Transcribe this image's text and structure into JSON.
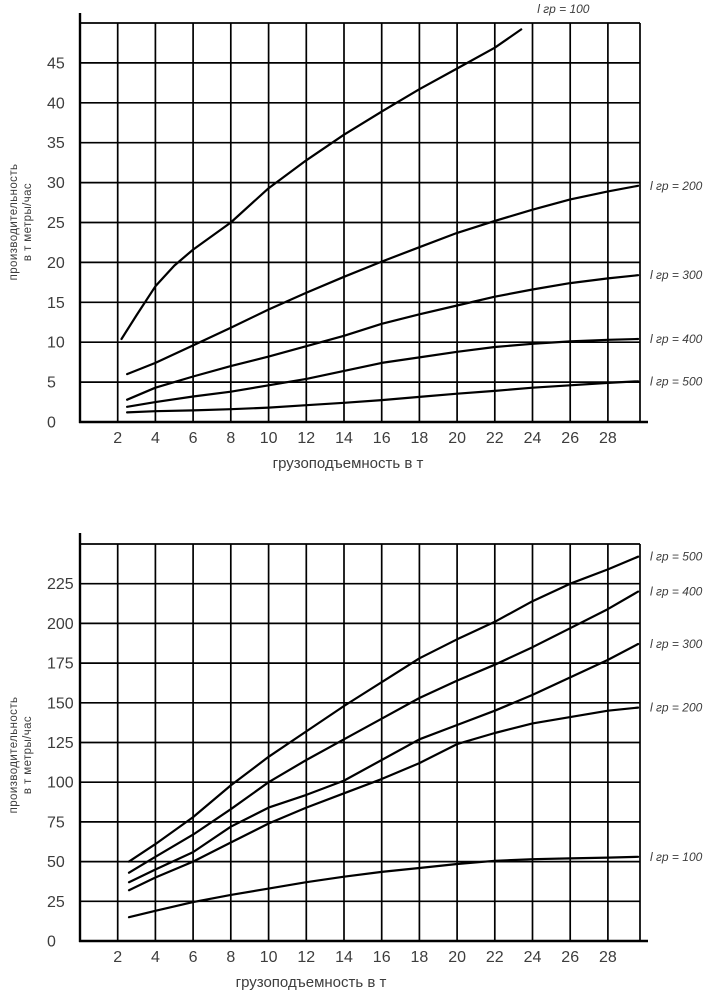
{
  "colors": {
    "background": "#ffffff",
    "line": "#000000",
    "text": "#3d3d3d"
  },
  "chart_data": [
    {
      "type": "line",
      "title": "",
      "xlabel": "грузоподъемность в т",
      "ylabel": "производительность в т метры/час",
      "ylabel_lines": [
        "производительность",
        "в т метры/час"
      ],
      "xlim": [
        0,
        29.7
      ],
      "ylim": [
        0,
        50
      ],
      "x_ticks": [
        2,
        4,
        6,
        8,
        10,
        12,
        14,
        16,
        18,
        20,
        22,
        24,
        26,
        28
      ],
      "y_ticks": [
        0,
        5,
        10,
        15,
        20,
        25,
        30,
        35,
        40,
        45
      ],
      "grid": true,
      "legend_position": "labels-at-curve-ends",
      "series": [
        {
          "name": "l гр = 100",
          "label_placement": "top",
          "points": [
            [
              2.2,
              10.4
            ],
            [
              3,
              13.4
            ],
            [
              4,
              17
            ],
            [
              5,
              19.6
            ],
            [
              6,
              21.6
            ],
            [
              8,
              25
            ],
            [
              10,
              29.3
            ],
            [
              12,
              32.8
            ],
            [
              14,
              36
            ],
            [
              16,
              38.9
            ],
            [
              18,
              41.7
            ],
            [
              20,
              44.3
            ],
            [
              22,
              46.9
            ],
            [
              23.4,
              49.2
            ]
          ]
        },
        {
          "name": "l гр = 200",
          "label_placement": "right",
          "points": [
            [
              2.5,
              6
            ],
            [
              4,
              7.4
            ],
            [
              6,
              9.6
            ],
            [
              8,
              11.8
            ],
            [
              10,
              14.1
            ],
            [
              12,
              16.2
            ],
            [
              14,
              18.2
            ],
            [
              16,
              20.1
            ],
            [
              18,
              21.9
            ],
            [
              20,
              23.7
            ],
            [
              22,
              25.2
            ],
            [
              24,
              26.6
            ],
            [
              26,
              27.9
            ],
            [
              28,
              28.9
            ],
            [
              29.6,
              29.6
            ]
          ]
        },
        {
          "name": "l гр = 300",
          "label_placement": "right",
          "points": [
            [
              2.5,
              2.8
            ],
            [
              4,
              4.3
            ],
            [
              6,
              5.7
            ],
            [
              8,
              7
            ],
            [
              10,
              8.2
            ],
            [
              12,
              9.5
            ],
            [
              14,
              10.8
            ],
            [
              16,
              12.3
            ],
            [
              18,
              13.5
            ],
            [
              20,
              14.6
            ],
            [
              22,
              15.7
            ],
            [
              24,
              16.6
            ],
            [
              26,
              17.4
            ],
            [
              28,
              18
            ],
            [
              29.6,
              18.4
            ]
          ]
        },
        {
          "name": "l гр = 400",
          "label_placement": "right",
          "points": [
            [
              2.5,
              1.9
            ],
            [
              4,
              2.5
            ],
            [
              6,
              3.2
            ],
            [
              8,
              3.8
            ],
            [
              10,
              4.6
            ],
            [
              12,
              5.4
            ],
            [
              14,
              6.4
            ],
            [
              16,
              7.4
            ],
            [
              18,
              8.1
            ],
            [
              20,
              8.8
            ],
            [
              22,
              9.4
            ],
            [
              24,
              9.8
            ],
            [
              26,
              10.1
            ],
            [
              28,
              10.3
            ],
            [
              29.6,
              10.4
            ]
          ]
        },
        {
          "name": "l гр = 500",
          "label_placement": "right",
          "points": [
            [
              2.5,
              1.2
            ],
            [
              4,
              1.35
            ],
            [
              6,
              1.45
            ],
            [
              8,
              1.6
            ],
            [
              10,
              1.8
            ],
            [
              12,
              2.1
            ],
            [
              14,
              2.4
            ],
            [
              16,
              2.75
            ],
            [
              18,
              3.15
            ],
            [
              20,
              3.55
            ],
            [
              22,
              3.9
            ],
            [
              24,
              4.3
            ],
            [
              26,
              4.6
            ],
            [
              28,
              4.9
            ],
            [
              29.6,
              5.1
            ]
          ]
        }
      ]
    },
    {
      "type": "line",
      "title": "",
      "xlabel": "грузоподъемность в т",
      "ylabel": "производительность в т метры/час",
      "ylabel_lines": [
        "производительность",
        "в т метры/час"
      ],
      "xlim": [
        0,
        29.7
      ],
      "ylim": [
        0,
        250
      ],
      "x_ticks": [
        2,
        4,
        6,
        8,
        10,
        12,
        14,
        16,
        18,
        20,
        22,
        24,
        26,
        28
      ],
      "y_ticks": [
        0,
        25,
        50,
        75,
        100,
        125,
        150,
        175,
        200,
        225
      ],
      "grid": true,
      "legend_position": "labels-at-curve-ends",
      "series": [
        {
          "name": "l гр = 500",
          "label_placement": "right",
          "points": [
            [
              2.6,
              50
            ],
            [
              4,
              61
            ],
            [
              6,
              78
            ],
            [
              8,
              98
            ],
            [
              10,
              116
            ],
            [
              12,
              132
            ],
            [
              14,
              148
            ],
            [
              16,
              163
            ],
            [
              18,
              178
            ],
            [
              20,
              190
            ],
            [
              22,
              201
            ],
            [
              24,
              214
            ],
            [
              26,
              225
            ],
            [
              28,
              234
            ],
            [
              29.6,
              242
            ]
          ]
        },
        {
          "name": "l гр = 400",
          "label_placement": "right",
          "points": [
            [
              2.6,
              43
            ],
            [
              4,
              53
            ],
            [
              6,
              67
            ],
            [
              8,
              83
            ],
            [
              10,
              100
            ],
            [
              12,
              114
            ],
            [
              14,
              127
            ],
            [
              16,
              140
            ],
            [
              18,
              153
            ],
            [
              20,
              164
            ],
            [
              22,
              174
            ],
            [
              24,
              185
            ],
            [
              26,
              197
            ],
            [
              28,
              209
            ],
            [
              29.6,
              220
            ]
          ]
        },
        {
          "name": "l гр = 300",
          "label_placement": "right",
          "points": [
            [
              2.6,
              37
            ],
            [
              4,
              45
            ],
            [
              6,
              56
            ],
            [
              8,
              72
            ],
            [
              10,
              84
            ],
            [
              12,
              92
            ],
            [
              14,
              101
            ],
            [
              16,
              114
            ],
            [
              18,
              127
            ],
            [
              20,
              136
            ],
            [
              22,
              145
            ],
            [
              24,
              155
            ],
            [
              26,
              166
            ],
            [
              28,
              177
            ],
            [
              29.6,
              187
            ]
          ]
        },
        {
          "name": "l гр = 200",
          "label_placement": "right",
          "points": [
            [
              2.6,
              32
            ],
            [
              4,
              40
            ],
            [
              6,
              50
            ],
            [
              8,
              62
            ],
            [
              10,
              74
            ],
            [
              12,
              84
            ],
            [
              14,
              93
            ],
            [
              16,
              102
            ],
            [
              18,
              112
            ],
            [
              20,
              124
            ],
            [
              22,
              131
            ],
            [
              24,
              137
            ],
            [
              26,
              141
            ],
            [
              28,
              145
            ],
            [
              29.6,
              147
            ]
          ]
        },
        {
          "name": "l гр = 100",
          "label_placement": "right",
          "points": [
            [
              2.6,
              15
            ],
            [
              4,
              19
            ],
            [
              6,
              24.5
            ],
            [
              8,
              29
            ],
            [
              10,
              33
            ],
            [
              12,
              37
            ],
            [
              14,
              40.5
            ],
            [
              16,
              43.5
            ],
            [
              18,
              46
            ],
            [
              20,
              48.5
            ],
            [
              22,
              50.5
            ],
            [
              24,
              51.5
            ],
            [
              26,
              52
            ],
            [
              28,
              52.5
            ],
            [
              29.6,
              53
            ]
          ]
        }
      ]
    }
  ]
}
